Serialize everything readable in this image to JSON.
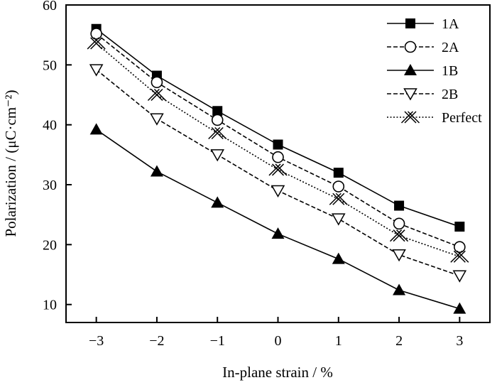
{
  "chart_data": {
    "type": "line",
    "title": "",
    "xlabel": "In-plane strain / %",
    "ylabel": "Polarization / (μC·cm⁻²)",
    "xlim": [
      -3.5,
      3.5
    ],
    "ylim": [
      7,
      60
    ],
    "x": [
      -3,
      -2,
      -1,
      0,
      1,
      2,
      3
    ],
    "x_tick_labels": [
      "−3",
      "−2",
      "−1",
      "0",
      "1",
      "2",
      "3"
    ],
    "y_ticks": [
      10,
      20,
      30,
      40,
      50,
      60
    ],
    "y_tick_labels": [
      "10",
      "20",
      "30",
      "40",
      "50",
      "60"
    ],
    "grid": false,
    "legend_position": "top-right",
    "series": [
      {
        "name": "1A",
        "marker": "filled-square",
        "line": "solid",
        "values": [
          56.0,
          48.2,
          42.3,
          36.7,
          32.0,
          26.5,
          23.0
        ]
      },
      {
        "name": "2A",
        "marker": "open-circle",
        "line": "dashed",
        "values": [
          55.2,
          47.1,
          40.8,
          34.6,
          29.7,
          23.5,
          19.6
        ]
      },
      {
        "name": "1B",
        "marker": "filled-triangle",
        "line": "solid",
        "values": [
          39.2,
          32.2,
          27.0,
          21.8,
          17.6,
          12.4,
          9.3
        ]
      },
      {
        "name": "2B",
        "marker": "open-triangle-down",
        "line": "dashed",
        "values": [
          49.2,
          41.0,
          35.0,
          29.0,
          24.3,
          18.3,
          14.8
        ]
      },
      {
        "name": "Perfect",
        "marker": "asterisk-x",
        "line": "dotted",
        "values": [
          53.6,
          45.0,
          38.6,
          32.5,
          27.6,
          21.5,
          18.0
        ]
      }
    ]
  }
}
